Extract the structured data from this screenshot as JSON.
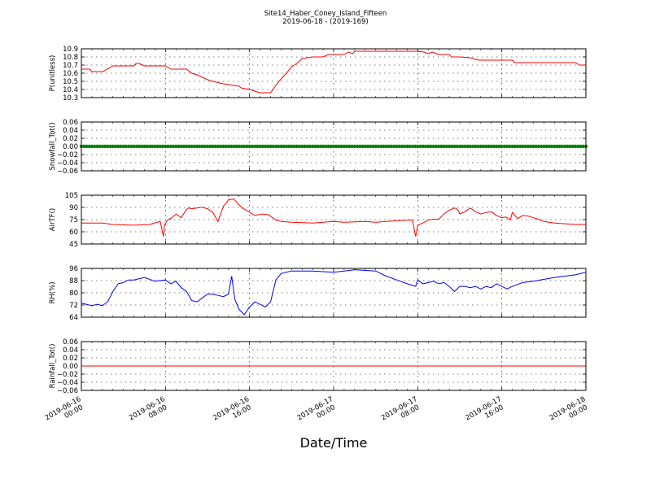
{
  "figure": {
    "title": "Site14_Haber_Coney_Island_Fifteen",
    "subtitle": "2019-06-18 - (2019-169)",
    "xlabel": "Date/Time"
  },
  "chart_data": [
    {
      "type": "line",
      "ylabel": "P(unitless)",
      "ylim": [
        10.3,
        10.9
      ],
      "yticks": [
        "10.3",
        "10.4",
        "10.5",
        "10.6",
        "10.7",
        "10.8",
        "10.9"
      ],
      "color": "#ff0000",
      "grid": true,
      "x_range": [
        0,
        48
      ],
      "x_unit": "hours since 2019-06-16 00:00",
      "series": [
        {
          "x": [
            0,
            0.8,
            1,
            2,
            2.2,
            3,
            5,
            5.2,
            5.5,
            6,
            7.8,
            8,
            8.5,
            10,
            10.5,
            11,
            11.5,
            12,
            12.5,
            13.5,
            14,
            15,
            15.2,
            16,
            16.5,
            17,
            18,
            18.4,
            18.8,
            19.5,
            20,
            20.5,
            21,
            22,
            23,
            23.5,
            24,
            25,
            25.4,
            25.8,
            26,
            27,
            28,
            29,
            30,
            31,
            32,
            32.6,
            33,
            33.4,
            33.8,
            34,
            35,
            35.2,
            36,
            37,
            37.8,
            38,
            41,
            41.2,
            45,
            47,
            47.4,
            48
          ],
          "y": [
            10.65,
            10.65,
            10.62,
            10.62,
            10.63,
            10.69,
            10.69,
            10.72,
            10.72,
            10.69,
            10.69,
            10.69,
            10.65,
            10.65,
            10.6,
            10.58,
            10.55,
            10.52,
            10.5,
            10.47,
            10.46,
            10.44,
            10.42,
            10.4,
            10.38,
            10.36,
            10.36,
            10.43,
            10.5,
            10.6,
            10.68,
            10.72,
            10.78,
            10.8,
            10.8,
            10.83,
            10.83,
            10.83,
            10.86,
            10.84,
            10.87,
            10.87,
            10.87,
            10.87,
            10.87,
            10.87,
            10.87,
            10.86,
            10.84,
            10.86,
            10.84,
            10.83,
            10.83,
            10.8,
            10.8,
            10.79,
            10.76,
            10.76,
            10.76,
            10.73,
            10.73,
            10.73,
            10.7,
            10.7
          ]
        }
      ]
    },
    {
      "type": "scatter",
      "ylabel": "Snowfall_Tot()",
      "ylim": [
        -0.06,
        0.06
      ],
      "yticks": [
        "−0.06",
        "−0.04",
        "−0.02",
        "0.00",
        "0.02",
        "0.04",
        "0.06"
      ],
      "color": "#008000",
      "grid": true,
      "x_range": [
        0,
        48
      ],
      "series": [
        {
          "x_start": 0,
          "x_end": 48,
          "step": 0.25,
          "y": 0.0
        }
      ]
    },
    {
      "type": "line",
      "ylabel": "AirTF()",
      "ylim": [
        40,
        105
      ],
      "yticks": [
        "45",
        "60",
        "75",
        "90",
        "105"
      ],
      "color": "#ff0000",
      "grid": true,
      "x_range": [
        0,
        48
      ],
      "series": [
        {
          "x": [
            0,
            2,
            3,
            5,
            6.5,
            7.5,
            7.8,
            7.9,
            8.2,
            8.6,
            9,
            9.5,
            10,
            10.2,
            10.5,
            11,
            11.5,
            12,
            12.5,
            13,
            13.5,
            13.8,
            14,
            14.5,
            15,
            15.3,
            15.7,
            16.5,
            17.2,
            17.8,
            18.5,
            19,
            20,
            22,
            24,
            25,
            27,
            28,
            29,
            30,
            31.5,
            31.8,
            32,
            32.5,
            33,
            33.5,
            34,
            34.5,
            35,
            35.5,
            35.8,
            36,
            36.5,
            37,
            37.5,
            38,
            38.5,
            39,
            39.5,
            40,
            40.4,
            40.8,
            41,
            41.5,
            42,
            42.5,
            43,
            43.5,
            44,
            45,
            46,
            47,
            48
          ],
          "y": [
            68,
            68,
            66,
            65,
            66,
            70,
            50,
            65,
            72,
            75,
            80,
            75,
            86,
            88,
            87,
            88,
            89,
            87,
            82,
            70,
            90,
            95,
            99,
            100,
            92,
            88,
            85,
            78,
            80,
            79,
            72,
            70,
            69,
            68,
            70,
            69,
            70,
            69,
            70,
            71,
            72,
            50,
            65,
            68,
            72,
            73,
            73,
            80,
            85,
            88,
            86,
            80,
            83,
            88,
            83,
            80,
            82,
            83,
            78,
            75,
            76,
            72,
            82,
            74,
            78,
            77,
            75,
            73,
            70,
            68,
            67,
            66,
            66
          ]
        }
      ]
    },
    {
      "type": "line",
      "ylabel": "RH(%)",
      "ylim": [
        60,
        98
      ],
      "yticks": [
        "64",
        "72",
        "80",
        "88",
        "96"
      ],
      "color": "#0000ff",
      "grid": true,
      "x_range": [
        0,
        48
      ],
      "series": [
        {
          "x": [
            0,
            1,
            1.5,
            2,
            2.5,
            3,
            3.5,
            4,
            4.5,
            5,
            5.5,
            6,
            7,
            8,
            8.5,
            9,
            9.5,
            10,
            10.5,
            11,
            11.5,
            12,
            12.5,
            13,
            13.5,
            14,
            14.3,
            14.6,
            15,
            15.5,
            16,
            16.5,
            17,
            17.5,
            18,
            18.5,
            19,
            19.5,
            20,
            22,
            24,
            25,
            26,
            28,
            29,
            30,
            31,
            31.8,
            32,
            32.5,
            33,
            33.5,
            34,
            34.5,
            35,
            35.5,
            36,
            36.5,
            37,
            37.5,
            38,
            38.5,
            39,
            39.5,
            40,
            40.5,
            41,
            42,
            43,
            45,
            47,
            48
          ],
          "y": [
            71,
            69,
            70,
            69,
            72,
            80,
            86,
            87,
            89,
            89,
            90,
            91,
            88,
            89,
            86,
            88,
            83,
            80,
            73,
            72,
            75,
            78,
            78,
            77,
            76,
            78,
            92,
            74,
            66,
            62,
            68,
            72,
            70,
            68,
            72,
            89,
            94,
            95,
            96,
            96,
            95,
            96,
            97,
            96,
            92,
            89,
            86,
            84,
            89,
            86,
            87,
            88,
            86,
            87,
            84,
            80,
            84,
            84,
            83,
            84,
            82,
            84,
            83,
            86,
            84,
            82,
            84,
            87,
            88,
            91,
            93,
            95
          ]
        }
      ]
    },
    {
      "type": "line",
      "ylabel": "Rainfall_Tot()",
      "ylim": [
        -0.06,
        0.06
      ],
      "yticks": [
        "−0.06",
        "−0.04",
        "−0.02",
        "0.00",
        "0.02",
        "0.04",
        "0.06"
      ],
      "color": "#ff0000",
      "grid": true,
      "x_range": [
        0,
        48
      ],
      "series": [
        {
          "x": [
            0,
            48
          ],
          "y": [
            0.0,
            0.0
          ]
        }
      ]
    }
  ],
  "xticks": [
    {
      "date": "2019-06-16",
      "time": "00:00",
      "x": 0
    },
    {
      "date": "2019-06-16",
      "time": "08:00",
      "x": 8
    },
    {
      "date": "2019-06-16",
      "time": "16:00",
      "x": 16
    },
    {
      "date": "2019-06-17",
      "time": "00:00",
      "x": 24
    },
    {
      "date": "2019-06-17",
      "time": "08:00",
      "x": 32
    },
    {
      "date": "2019-06-17",
      "time": "16:00",
      "x": 40
    },
    {
      "date": "2019-06-18",
      "time": "00:00",
      "x": 48
    }
  ]
}
